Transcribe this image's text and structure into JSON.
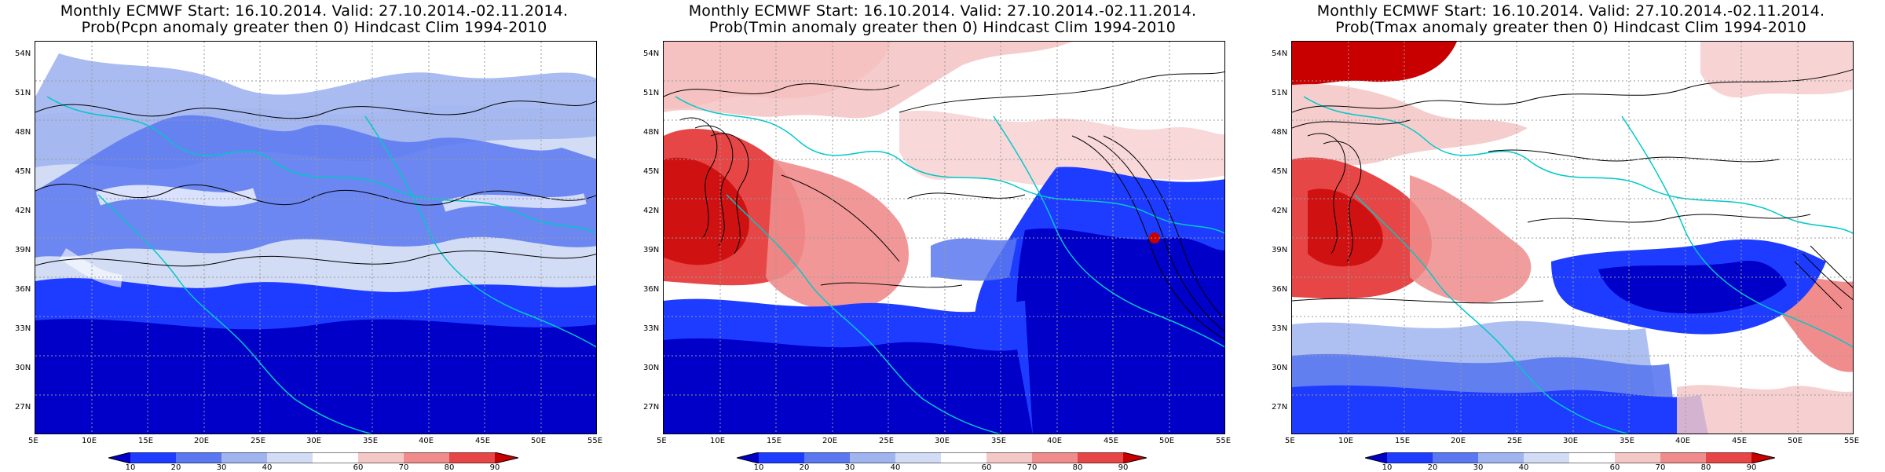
{
  "panels": [
    {
      "title_line1": "Monthly ECMWF Start: 16.10.2014. Valid: 27.10.2014.-02.11.2014.",
      "title_line2": "Prob(Pcpn anomaly greater then 0) Hindcast Clim 1994-2010",
      "bias": "blue"
    },
    {
      "title_line1": "Monthly ECMWF Start: 16.10.2014. Valid: 27.10.2014.-02.11.2014.",
      "title_line2": "Prob(Tmin anomaly greater then 0) Hindcast Clim 1994-2010",
      "bias": "red-north"
    },
    {
      "title_line1": "Monthly ECMWF Start: 16.10.2014. Valid: 27.10.2014.-02.11.2014.",
      "title_line2": "Prob(Tmax anomaly greater then 0) Hindcast Clim 1994-2010",
      "bias": "red-north"
    }
  ],
  "lat_labels": [
    "54N",
    "51N",
    "48N",
    "45N",
    "42N",
    "39N",
    "36N",
    "33N",
    "30N",
    "27N"
  ],
  "lon_labels": [
    "5E",
    "10E",
    "15E",
    "20E",
    "25E",
    "30E",
    "35E",
    "40E",
    "45E",
    "50E",
    "55E"
  ],
  "colorbar": {
    "labels": [
      "10",
      "20",
      "30",
      "40",
      "60",
      "70",
      "80",
      "90"
    ],
    "colors": [
      "#0000c8",
      "#1e3cff",
      "#5a78f0",
      "#a0b4f0",
      "#d2dcf5",
      "#ffffff",
      "#f5c8c8",
      "#f08c8c",
      "#e64646",
      "#c80000"
    ]
  },
  "map_colors": {
    "coast": "#00c8c8",
    "contour": "#000000",
    "land_grid": "#9a9a9a"
  }
}
